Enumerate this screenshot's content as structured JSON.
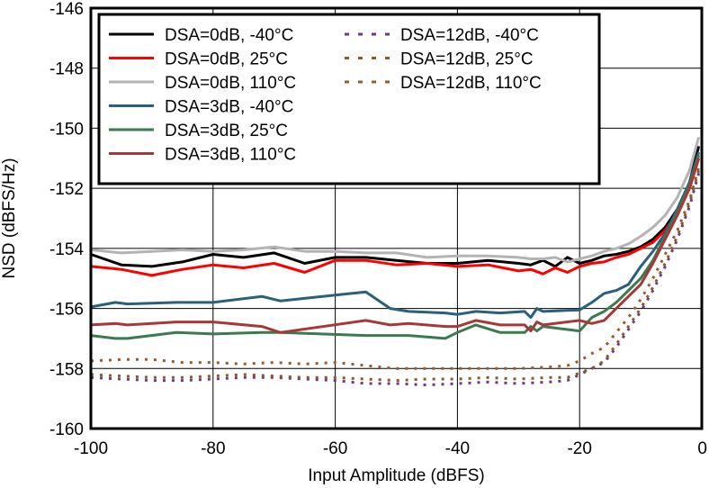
{
  "chart_data": {
    "type": "line",
    "title": "",
    "xlabel": "Input Amplitude (dBFS)",
    "ylabel": "NSD (dBFS/Hz)",
    "xlim": [
      -100,
      0
    ],
    "ylim": [
      -160,
      -146
    ],
    "xticks": [
      -100,
      -80,
      -60,
      -40,
      -20,
      0
    ],
    "yticks": [
      -160,
      -158,
      -156,
      -154,
      -152,
      -150,
      -148,
      -146
    ],
    "xtick_labels": [
      "-100",
      "-80",
      "-60",
      "-40",
      "-20",
      "0"
    ],
    "ytick_labels": [
      "-160",
      "-158",
      "-156",
      "-154",
      "-152",
      "-150",
      "-148",
      "-146"
    ],
    "grid": true,
    "legend_position": "top-left",
    "series": [
      {
        "name": "DSA=0dB, -40°C",
        "color": "#000000",
        "style": "solid",
        "points": [
          [
            -100,
            -154.2
          ],
          [
            -95,
            -154.55
          ],
          [
            -90,
            -154.6
          ],
          [
            -85,
            -154.45
          ],
          [
            -80,
            -154.2
          ],
          [
            -75,
            -154.3
          ],
          [
            -70,
            -154.15
          ],
          [
            -65,
            -154.5
          ],
          [
            -60,
            -154.3
          ],
          [
            -55,
            -154.3
          ],
          [
            -50,
            -154.4
          ],
          [
            -45,
            -154.5
          ],
          [
            -40,
            -154.5
          ],
          [
            -35,
            -154.4
          ],
          [
            -30,
            -154.5
          ],
          [
            -28,
            -154.55
          ],
          [
            -26,
            -154.4
          ],
          [
            -24,
            -154.6
          ],
          [
            -22,
            -154.3
          ],
          [
            -20,
            -154.5
          ],
          [
            -18,
            -154.4
          ],
          [
            -16,
            -154.25
          ],
          [
            -14,
            -154.2
          ],
          [
            -12,
            -154.1
          ],
          [
            -10,
            -153.95
          ],
          [
            -8,
            -153.7
          ],
          [
            -6,
            -153.3
          ],
          [
            -4,
            -152.7
          ],
          [
            -2,
            -151.8
          ],
          [
            -0.5,
            -150.6
          ]
        ]
      },
      {
        "name": "DSA=0dB, 25°C",
        "color": "#ff0000",
        "style": "solid",
        "points": [
          [
            -100,
            -154.6
          ],
          [
            -95,
            -154.7
          ],
          [
            -90,
            -154.9
          ],
          [
            -85,
            -154.7
          ],
          [
            -80,
            -154.55
          ],
          [
            -75,
            -154.65
          ],
          [
            -70,
            -154.5
          ],
          [
            -65,
            -154.8
          ],
          [
            -60,
            -154.4
          ],
          [
            -55,
            -154.4
          ],
          [
            -50,
            -154.55
          ],
          [
            -45,
            -154.5
          ],
          [
            -40,
            -154.6
          ],
          [
            -35,
            -154.55
          ],
          [
            -30,
            -154.75
          ],
          [
            -28,
            -154.7
          ],
          [
            -26,
            -154.85
          ],
          [
            -24,
            -154.65
          ],
          [
            -22,
            -154.8
          ],
          [
            -20,
            -154.6
          ],
          [
            -18,
            -154.5
          ],
          [
            -16,
            -154.45
          ],
          [
            -14,
            -154.3
          ],
          [
            -12,
            -154.2
          ],
          [
            -10,
            -154.0
          ],
          [
            -8,
            -153.8
          ],
          [
            -6,
            -153.4
          ],
          [
            -4,
            -152.8
          ],
          [
            -2,
            -152.0
          ],
          [
            -0.5,
            -151.0
          ]
        ]
      },
      {
        "name": "DSA=0dB, 110°C",
        "color": "#b3b3b3",
        "style": "solid",
        "points": [
          [
            -100,
            -154.05
          ],
          [
            -95,
            -154.15
          ],
          [
            -90,
            -154.1
          ],
          [
            -85,
            -154.05
          ],
          [
            -80,
            -154.1
          ],
          [
            -75,
            -154.05
          ],
          [
            -70,
            -153.95
          ],
          [
            -65,
            -154.1
          ],
          [
            -60,
            -154.1
          ],
          [
            -55,
            -154.15
          ],
          [
            -50,
            -154.15
          ],
          [
            -45,
            -154.3
          ],
          [
            -40,
            -154.25
          ],
          [
            -35,
            -154.25
          ],
          [
            -30,
            -154.3
          ],
          [
            -28,
            -154.35
          ],
          [
            -26,
            -154.35
          ],
          [
            -24,
            -154.3
          ],
          [
            -22,
            -154.45
          ],
          [
            -20,
            -154.35
          ],
          [
            -18,
            -154.25
          ],
          [
            -16,
            -154.1
          ],
          [
            -14,
            -154.0
          ],
          [
            -12,
            -153.85
          ],
          [
            -10,
            -153.6
          ],
          [
            -8,
            -153.3
          ],
          [
            -6,
            -152.9
          ],
          [
            -4,
            -152.3
          ],
          [
            -2,
            -151.4
          ],
          [
            -0.5,
            -150.3
          ]
        ]
      },
      {
        "name": "DSA=3dB, -40°C",
        "color": "#28607e",
        "style": "solid",
        "points": [
          [
            -100,
            -155.95
          ],
          [
            -96,
            -155.8
          ],
          [
            -94,
            -155.85
          ],
          [
            -86,
            -155.8
          ],
          [
            -80,
            -155.8
          ],
          [
            -72,
            -155.6
          ],
          [
            -69,
            -155.75
          ],
          [
            -55,
            -155.45
          ],
          [
            -51,
            -156.0
          ],
          [
            -48,
            -156.1
          ],
          [
            -42,
            -156.15
          ],
          [
            -40,
            -156.2
          ],
          [
            -37,
            -156.1
          ],
          [
            -33,
            -156.15
          ],
          [
            -29,
            -156.1
          ],
          [
            -28,
            -156.3
          ],
          [
            -27,
            -156.0
          ],
          [
            -26,
            -156.1
          ],
          [
            -20,
            -156.05
          ],
          [
            -18,
            -155.8
          ],
          [
            -16,
            -155.5
          ],
          [
            -14,
            -155.4
          ],
          [
            -12,
            -155.2
          ],
          [
            -10,
            -154.6
          ],
          [
            -8,
            -154.1
          ],
          [
            -6,
            -153.5
          ],
          [
            -4,
            -152.7
          ],
          [
            -2,
            -151.8
          ],
          [
            -0.5,
            -150.8
          ]
        ]
      },
      {
        "name": "DSA=3dB, 25°C",
        "color": "#3a7a4e",
        "style": "solid",
        "points": [
          [
            -100,
            -156.9
          ],
          [
            -96,
            -157.0
          ],
          [
            -94,
            -157.0
          ],
          [
            -86,
            -156.8
          ],
          [
            -80,
            -156.85
          ],
          [
            -72,
            -156.8
          ],
          [
            -69,
            -156.8
          ],
          [
            -55,
            -156.9
          ],
          [
            -51,
            -156.9
          ],
          [
            -48,
            -156.9
          ],
          [
            -42,
            -157.0
          ],
          [
            -40,
            -156.8
          ],
          [
            -37,
            -156.55
          ],
          [
            -33,
            -156.8
          ],
          [
            -29,
            -156.8
          ],
          [
            -28,
            -156.6
          ],
          [
            -27,
            -156.75
          ],
          [
            -26,
            -156.6
          ],
          [
            -20,
            -156.75
          ],
          [
            -18,
            -156.3
          ],
          [
            -16,
            -156.1
          ],
          [
            -14,
            -155.8
          ],
          [
            -12,
            -155.4
          ],
          [
            -10,
            -155.0
          ],
          [
            -8,
            -154.4
          ],
          [
            -6,
            -153.6
          ],
          [
            -4,
            -152.8
          ],
          [
            -2,
            -151.9
          ],
          [
            -0.5,
            -150.9
          ]
        ]
      },
      {
        "name": "DSA=3dB, 110°C",
        "color": "#a83838",
        "style": "solid",
        "points": [
          [
            -100,
            -156.55
          ],
          [
            -96,
            -156.5
          ],
          [
            -94,
            -156.55
          ],
          [
            -86,
            -156.45
          ],
          [
            -80,
            -156.45
          ],
          [
            -72,
            -156.6
          ],
          [
            -69,
            -156.8
          ],
          [
            -55,
            -156.4
          ],
          [
            -51,
            -156.55
          ],
          [
            -48,
            -156.5
          ],
          [
            -42,
            -156.6
          ],
          [
            -40,
            -156.6
          ],
          [
            -37,
            -156.4
          ],
          [
            -33,
            -156.55
          ],
          [
            -29,
            -156.55
          ],
          [
            -28,
            -156.75
          ],
          [
            -27,
            -156.45
          ],
          [
            -26,
            -156.55
          ],
          [
            -20,
            -156.4
          ],
          [
            -18,
            -156.5
          ],
          [
            -16,
            -156.4
          ],
          [
            -14,
            -156.0
          ],
          [
            -12,
            -155.6
          ],
          [
            -10,
            -155.2
          ],
          [
            -8,
            -154.5
          ],
          [
            -6,
            -153.7
          ],
          [
            -4,
            -152.9
          ],
          [
            -2,
            -152.0
          ],
          [
            -0.5,
            -151.0
          ]
        ]
      },
      {
        "name": "DSA=12dB, -40°C",
        "color": "#6f3a7f",
        "style": "dotted",
        "points": [
          [
            -100,
            -158.3
          ],
          [
            -95,
            -158.35
          ],
          [
            -90,
            -158.4
          ],
          [
            -85,
            -158.4
          ],
          [
            -80,
            -158.35
          ],
          [
            -75,
            -158.3
          ],
          [
            -70,
            -158.3
          ],
          [
            -65,
            -158.35
          ],
          [
            -60,
            -158.4
          ],
          [
            -55,
            -158.5
          ],
          [
            -50,
            -158.5
          ],
          [
            -45,
            -158.55
          ],
          [
            -40,
            -158.5
          ],
          [
            -35,
            -158.45
          ],
          [
            -30,
            -158.5
          ],
          [
            -25,
            -158.45
          ],
          [
            -22,
            -158.4
          ],
          [
            -20,
            -158.2
          ],
          [
            -18,
            -158.0
          ],
          [
            -16,
            -157.8
          ],
          [
            -14,
            -157.3
          ],
          [
            -12,
            -156.7
          ],
          [
            -10,
            -156.1
          ],
          [
            -8,
            -155.4
          ],
          [
            -6,
            -154.6
          ],
          [
            -4,
            -153.7
          ],
          [
            -2,
            -152.6
          ],
          [
            -0.5,
            -151.5
          ]
        ]
      },
      {
        "name": "DSA=12dB, 25°C",
        "color": "#8a5a2a",
        "style": "dotted",
        "points": [
          [
            -100,
            -158.2
          ],
          [
            -95,
            -158.25
          ],
          [
            -90,
            -158.3
          ],
          [
            -85,
            -158.3
          ],
          [
            -80,
            -158.25
          ],
          [
            -75,
            -158.2
          ],
          [
            -70,
            -158.25
          ],
          [
            -65,
            -158.3
          ],
          [
            -60,
            -158.3
          ],
          [
            -55,
            -158.35
          ],
          [
            -50,
            -158.4
          ],
          [
            -45,
            -158.35
          ],
          [
            -40,
            -158.35
          ],
          [
            -35,
            -158.3
          ],
          [
            -30,
            -158.35
          ],
          [
            -25,
            -158.3
          ],
          [
            -22,
            -158.3
          ],
          [
            -20,
            -158.15
          ],
          [
            -18,
            -158.0
          ],
          [
            -16,
            -157.75
          ],
          [
            -14,
            -157.2
          ],
          [
            -12,
            -156.6
          ],
          [
            -10,
            -156.0
          ],
          [
            -8,
            -155.3
          ],
          [
            -6,
            -154.5
          ],
          [
            -4,
            -153.6
          ],
          [
            -2,
            -152.5
          ],
          [
            -0.5,
            -151.4
          ]
        ]
      },
      {
        "name": "DSA=12dB, 110°C",
        "color": "#9a5c2c",
        "style": "dotted",
        "points": [
          [
            -100,
            -157.75
          ],
          [
            -95,
            -157.7
          ],
          [
            -90,
            -157.7
          ],
          [
            -85,
            -157.8
          ],
          [
            -80,
            -157.8
          ],
          [
            -75,
            -157.85
          ],
          [
            -70,
            -157.8
          ],
          [
            -65,
            -157.85
          ],
          [
            -60,
            -157.8
          ],
          [
            -55,
            -157.9
          ],
          [
            -50,
            -158.0
          ],
          [
            -45,
            -158.0
          ],
          [
            -40,
            -158.0
          ],
          [
            -35,
            -158.0
          ],
          [
            -30,
            -158.0
          ],
          [
            -25,
            -157.95
          ],
          [
            -22,
            -157.9
          ],
          [
            -20,
            -157.75
          ],
          [
            -18,
            -157.5
          ],
          [
            -16,
            -157.3
          ],
          [
            -14,
            -156.8
          ],
          [
            -12,
            -156.3
          ],
          [
            -10,
            -155.7
          ],
          [
            -8,
            -155.0
          ],
          [
            -6,
            -154.2
          ],
          [
            -4,
            -153.4
          ],
          [
            -2,
            -152.4
          ],
          [
            -0.5,
            -151.3
          ]
        ]
      }
    ]
  }
}
